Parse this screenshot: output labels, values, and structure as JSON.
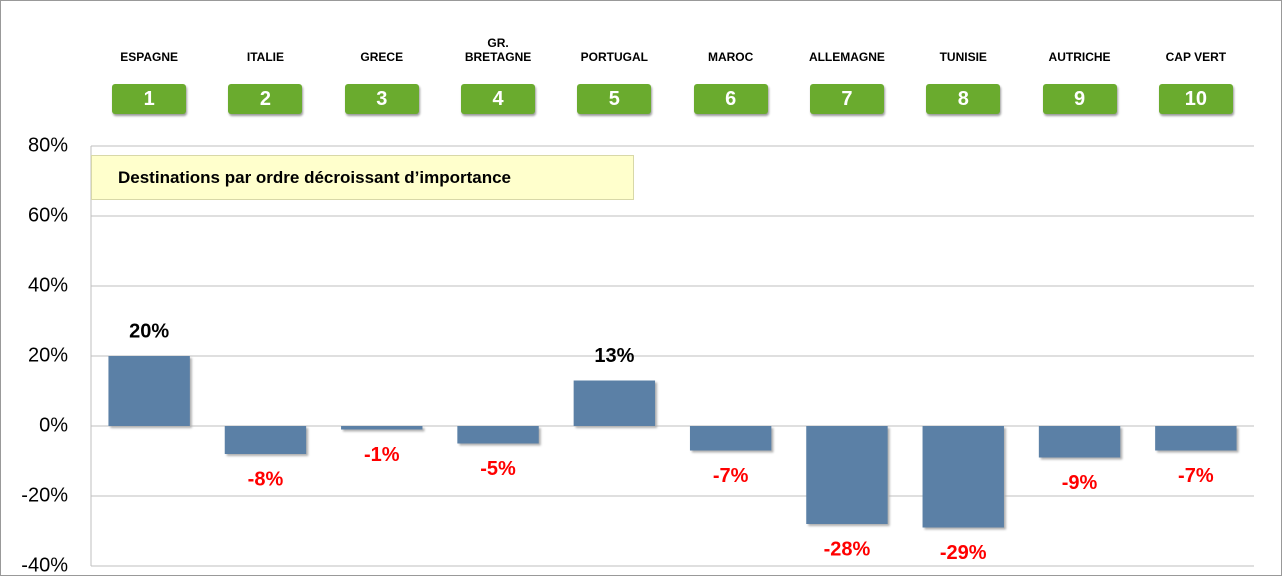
{
  "chart_data": {
    "type": "bar",
    "note": "Destinations par ordre décroissant d’importance",
    "categories": [
      "ESPAGNE",
      "ITALIE",
      "GRECE",
      "GR. BRETAGNE",
      "PORTUGAL",
      "MAROC",
      "ALLEMAGNE",
      "TUNISIE",
      "AUTRICHE",
      "CAP VERT"
    ],
    "ranks": [
      1,
      2,
      3,
      4,
      5,
      6,
      7,
      8,
      9,
      10
    ],
    "values": [
      20,
      -8,
      -1,
      -5,
      13,
      -7,
      -28,
      -29,
      -9,
      -7
    ],
    "value_labels": [
      "20%",
      "-8%",
      "-1%",
      "-5%",
      "13%",
      "-7%",
      "-28%",
      "-29%",
      "-9%",
      "-7%"
    ],
    "color": "#5b80a6",
    "ylim": [
      -40,
      80
    ],
    "yticks": [
      {
        "value": -40,
        "label": "-40%"
      },
      {
        "value": -20,
        "label": "-20%"
      },
      {
        "value": 0,
        "label": "0%"
      },
      {
        "value": 20,
        "label": "20%"
      },
      {
        "value": 40,
        "label": "40%"
      },
      {
        "value": 60,
        "label": "60%"
      },
      {
        "value": 80,
        "label": "80%"
      }
    ],
    "grid": true
  }
}
